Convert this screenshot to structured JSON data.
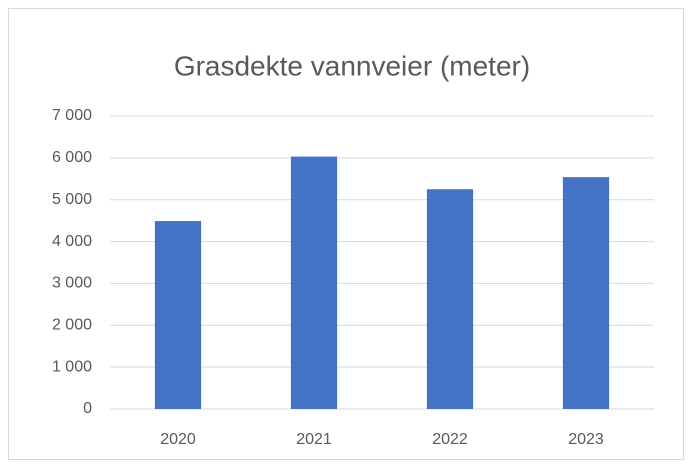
{
  "chart_data": {
    "type": "bar",
    "title": "Grasdekte vannveier (meter)",
    "categories": [
      "2020",
      "2021",
      "2022",
      "2023"
    ],
    "values": [
      4490,
      6030,
      5250,
      5540
    ],
    "color": "#4472c4",
    "ylim": [
      0,
      7000
    ],
    "yticks": [
      0,
      {
        "value": 1000,
        "label": "1 000"
      },
      {
        "value": 2000,
        "label": "2 000"
      },
      {
        "value": 3000,
        "label": "3 000"
      },
      {
        "value": 4000,
        "label": "4 000"
      },
      {
        "value": 5000,
        "label": "5 000"
      },
      {
        "value": 6000,
        "label": "6 000"
      },
      {
        "value": 7000,
        "label": "7 000"
      }
    ],
    "grid": true
  }
}
